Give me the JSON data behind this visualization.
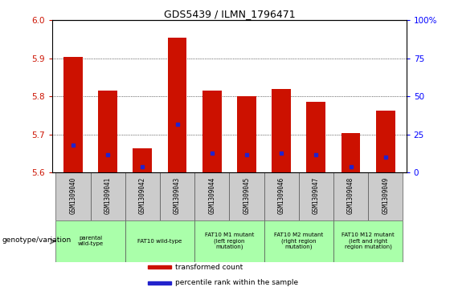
{
  "title": "GDS5439 / ILMN_1796471",
  "samples": [
    "GSM1309040",
    "GSM1309041",
    "GSM1309042",
    "GSM1309043",
    "GSM1309044",
    "GSM1309045",
    "GSM1309046",
    "GSM1309047",
    "GSM1309048",
    "GSM1309049"
  ],
  "transformed_count": [
    5.905,
    5.815,
    5.665,
    5.955,
    5.815,
    5.8,
    5.82,
    5.787,
    5.705,
    5.762
  ],
  "percentile_rank": [
    0.18,
    0.12,
    0.04,
    0.32,
    0.13,
    0.12,
    0.13,
    0.12,
    0.04,
    0.1
  ],
  "ylim_left": [
    5.6,
    6.0
  ],
  "ylim_right": [
    0,
    100
  ],
  "yticks_left": [
    5.6,
    5.7,
    5.8,
    5.9,
    6.0
  ],
  "yticks_right": [
    0,
    25,
    50,
    75,
    100
  ],
  "ytick_right_labels": [
    "0",
    "25",
    "50",
    "75",
    "100%"
  ],
  "bar_color": "#cc1100",
  "blue_marker_color": "#2222cc",
  "groups": [
    {
      "label": "parental\nwild-type",
      "start": 0,
      "end": 1
    },
    {
      "label": "FAT10 wild-type",
      "start": 2,
      "end": 3
    },
    {
      "label": "FAT10 M1 mutant\n(left region\nmutation)",
      "start": 4,
      "end": 5
    },
    {
      "label": "FAT10 M2 mutant\n(right region\nmutation)",
      "start": 6,
      "end": 7
    },
    {
      "label": "FAT10 M12 mutant\n(left and right\nregion mutation)",
      "start": 8,
      "end": 9
    }
  ],
  "group_color": "#aaffaa",
  "genotype_label": "genotype/variation",
  "legend_items": [
    {
      "label": "transformed count",
      "color": "#cc1100"
    },
    {
      "label": "percentile rank within the sample",
      "color": "#2222cc"
    }
  ],
  "bar_width": 0.55,
  "sample_bg_color": "#cccccc",
  "gridline_color": "#000000",
  "gridline_ticks": [
    5.7,
    5.8,
    5.9
  ]
}
